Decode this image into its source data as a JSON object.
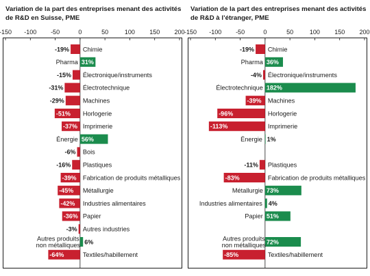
{
  "colors": {
    "negative": "#c8202f",
    "positive": "#1b8c4d",
    "text": "#1a1a1a"
  },
  "chart_data": [
    {
      "type": "bar",
      "orientation": "horizontal",
      "title": "Variation de la part des entreprises menant des activités de R&D en Suisse, PME",
      "xlim": [
        -150,
        200
      ],
      "xticks": [
        -150,
        -100,
        -50,
        0,
        50,
        100,
        150,
        200
      ],
      "tick_labels": [
        "-150",
        "-100",
        "-50",
        "0",
        "50",
        "100",
        "150",
        "200"
      ],
      "categories": [
        "Chimie",
        "Pharma",
        "Électronique/instruments",
        "Électrotechnique",
        "Machines",
        "Horlogerie",
        "Imprimerie",
        "Énergie",
        "Bois",
        "Plastiques",
        "Fabrication de produits métalliques",
        "Métallurgie",
        "Industries alimentaires",
        "Papier",
        "Autres industries",
        "Autres produits non métalliques",
        "Textiles/habillement"
      ],
      "category_lines": [
        [
          "Chimie"
        ],
        [
          "Pharma"
        ],
        [
          "Électronique/instruments"
        ],
        [
          "Électrotechnique"
        ],
        [
          "Machines"
        ],
        [
          "Horlogerie"
        ],
        [
          "Imprimerie"
        ],
        [
          "Énergie"
        ],
        [
          "Bois"
        ],
        [
          "Plastiques"
        ],
        [
          "Fabrication de produits métalliques"
        ],
        [
          "Métallurgie"
        ],
        [
          "Industries alimentaires"
        ],
        [
          "Papier"
        ],
        [
          "Autres industries"
        ],
        [
          "Autres produits",
          "non métalliques"
        ],
        [
          "Textiles/habillement"
        ]
      ],
      "values": [
        -19,
        31,
        -15,
        -31,
        -29,
        -51,
        -37,
        56,
        -6,
        -16,
        -39,
        -45,
        -42,
        -36,
        -3,
        6,
        -64
      ],
      "value_labels": [
        "-19%",
        "31%",
        "-15%",
        "-31%",
        "-29%",
        "-51%",
        "-37%",
        "56%",
        "-6%",
        "-16%",
        "-39%",
        "-45%",
        "-42%",
        "-36%",
        "-3%",
        "6%",
        "-64%"
      ]
    },
    {
      "type": "bar",
      "orientation": "horizontal",
      "title": "Variation de la part des entreprises menant des activités de R&D à l’étranger, PME",
      "xlim": [
        -150,
        200
      ],
      "xticks": [
        -150,
        -100,
        -50,
        0,
        50,
        100,
        150,
        200
      ],
      "tick_labels": [
        "-150",
        "-100",
        "-50",
        "0",
        "50",
        "100",
        "150",
        "200"
      ],
      "categories": [
        "Chimie",
        "Pharma",
        "Électronique/instruments",
        "Électrotechnique",
        "Machines",
        "Horlogerie",
        "Imprimerie",
        "Énergie",
        "Plastiques",
        "Fabrication de produits métalliques",
        "Métallurgie",
        "Industries alimentaires",
        "Papier",
        "Autres produits non métalliques",
        "Textiles/habillement"
      ],
      "category_lines": [
        [
          "Chimie"
        ],
        [
          "Pharma"
        ],
        [
          "Électronique/instruments"
        ],
        [
          "Électrotechnique"
        ],
        [
          "Machines"
        ],
        [
          "Horlogerie"
        ],
        [
          "Imprimerie"
        ],
        [
          "Énergie"
        ],
        [
          "Plastiques"
        ],
        [
          "Fabrication de produits métalliques"
        ],
        [
          "Métallurgie"
        ],
        [
          "Industries alimentaires"
        ],
        [
          "Papier"
        ],
        [
          "Autres produits",
          "non métalliques"
        ],
        [
          "Textiles/habillement"
        ]
      ],
      "values": [
        -19,
        36,
        -4,
        182,
        -39,
        -96,
        -113,
        1,
        -11,
        -83,
        73,
        4,
        51,
        72,
        -85
      ],
      "value_labels": [
        "-19%",
        "36%",
        "-4%",
        "182%",
        "-39%",
        "-96%",
        "-113%",
        "1%",
        "-11%",
        "-83%",
        "73%",
        "4%",
        "51%",
        "72%",
        "-85%"
      ],
      "row_slots": [
        0,
        1,
        2,
        3,
        4,
        5,
        6,
        7,
        9,
        10,
        11,
        12,
        13,
        15,
        16
      ]
    }
  ]
}
